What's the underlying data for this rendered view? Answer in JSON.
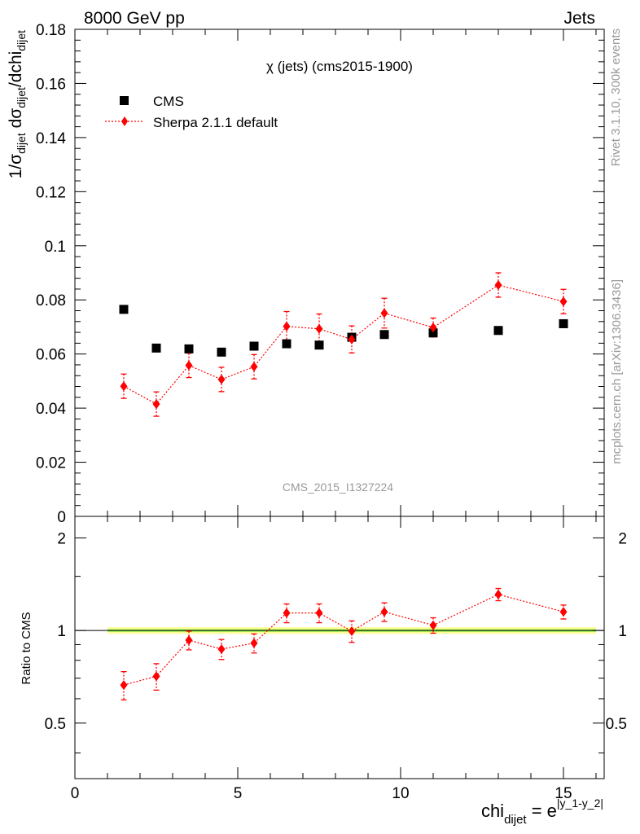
{
  "header": {
    "left": "8000 GeV pp",
    "right": "Jets"
  },
  "side": {
    "rivet": "Rivet 3.1.10,  300k events",
    "mcplots": "mcplots.cern.ch [arXiv:1306.3436]"
  },
  "chart_data": [
    {
      "type": "scatter",
      "title": "χ (jets) (cms2015-1900)",
      "watermark": "CMS_2015_I1327224",
      "ylabel": "1/σdijet dσdijet/dchidijet",
      "xlim": [
        0,
        16.25
      ],
      "ylim": [
        0,
        0.18
      ],
      "y_ticks": [
        0,
        0.02,
        0.04,
        0.06,
        0.08,
        0.1,
        0.12,
        0.14,
        0.16,
        0.18
      ],
      "y_tick_labels": [
        "0",
        "0.02",
        "0.04",
        "0.06",
        "0.08",
        "0.1",
        "0.12",
        "0.14",
        "0.16",
        "0.18"
      ],
      "legend_position": "top-left",
      "series": [
        {
          "name": "CMS",
          "color": "#000000",
          "marker": "square",
          "x": [
            1.5,
            2.5,
            3.5,
            4.5,
            5.5,
            6.5,
            7.5,
            8.5,
            9.5,
            11,
            13,
            15
          ],
          "y": [
            0.0765,
            0.0622,
            0.0619,
            0.0607,
            0.0629,
            0.0638,
            0.0633,
            0.0662,
            0.0672,
            0.0678,
            0.0687,
            0.0712
          ]
        },
        {
          "name": "Sherpa 2.1.1 default",
          "color": "#ff0000",
          "marker": "diamond",
          "line": "dotted",
          "x": [
            1.5,
            2.5,
            3.5,
            4.5,
            5.5,
            6.5,
            7.5,
            8.5,
            9.5,
            11,
            13,
            15
          ],
          "y": [
            0.0481,
            0.0415,
            0.0558,
            0.0506,
            0.0553,
            0.0702,
            0.0693,
            0.0654,
            0.0751,
            0.0698,
            0.0855,
            0.0794
          ],
          "yerr": [
            0.0045,
            0.0045,
            0.0045,
            0.0045,
            0.0045,
            0.0055,
            0.0055,
            0.005,
            0.0055,
            0.0035,
            0.0045,
            0.0045
          ]
        }
      ]
    },
    {
      "type": "scatter",
      "ylabel": "Ratio to CMS",
      "xlabel": "chidijet = e|y_1-y_2|",
      "xlim": [
        0,
        16.25
      ],
      "ylim": [
        0.33,
        2.35
      ],
      "x_ticks": [
        0,
        5,
        10,
        15
      ],
      "x_tick_labels": [
        "0",
        "5",
        "10",
        "15"
      ],
      "y_ticks": [
        0.5,
        1,
        2
      ],
      "y_tick_labels": [
        "0.5",
        "1",
        "2"
      ],
      "band": {
        "x": [
          1,
          16
        ],
        "low": 0.975,
        "high": 1.025,
        "inner_low": 0.99,
        "inner_high": 1.01
      },
      "series": [
        {
          "name": "Sherpa 2.1.1 default",
          "color": "#ff0000",
          "marker": "diamond",
          "line": "dotted",
          "x": [
            1.5,
            2.5,
            3.5,
            4.5,
            5.5,
            6.5,
            7.5,
            8.5,
            9.5,
            11,
            13,
            15
          ],
          "y": [
            0.665,
            0.71,
            0.93,
            0.87,
            0.91,
            1.14,
            1.14,
            0.995,
            1.15,
            1.04,
            1.31,
            1.15
          ],
          "yerr": [
            0.07,
            0.07,
            0.065,
            0.065,
            0.065,
            0.08,
            0.08,
            0.08,
            0.08,
            0.06,
            0.06,
            0.06
          ]
        }
      ]
    }
  ]
}
